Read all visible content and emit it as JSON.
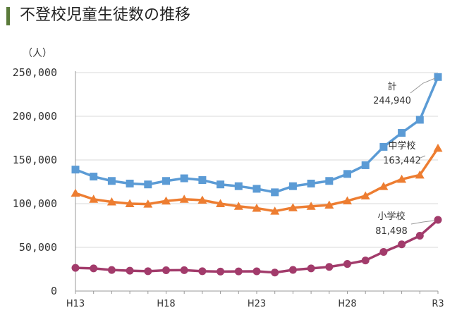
{
  "header": {
    "title": "不登校児童生徒数の推移",
    "accent_color": "#5a7a3a"
  },
  "chart_data": {
    "type": "line",
    "title": "不登校児童生徒数の推移",
    "ylabel": "（人）",
    "xlabel": "",
    "ylim": [
      0,
      250000
    ],
    "yticks": [
      0,
      50000,
      100000,
      150000,
      200000,
      250000
    ],
    "ytick_labels": [
      "0",
      "50,000",
      "100,000",
      "150,000",
      "200,000",
      "250,000"
    ],
    "x": [
      "H13",
      "H14",
      "H15",
      "H16",
      "H17",
      "H18",
      "H19",
      "H20",
      "H21",
      "H22",
      "H23",
      "H24",
      "H25",
      "H26",
      "H27",
      "H28",
      "H29",
      "H30",
      "R1",
      "R2",
      "R3"
    ],
    "xtick_labels": [
      "H13",
      "H18",
      "H23",
      "H28",
      "R3"
    ],
    "xtick_indices": [
      0,
      5,
      10,
      15,
      20
    ],
    "grid": "horizontal",
    "series": [
      {
        "name": "計",
        "color": "#5b9bd5",
        "marker": "square",
        "values": [
          139000,
          131000,
          126000,
          123000,
          122000,
          126000,
          129000,
          127000,
          122000,
          120000,
          117000,
          113000,
          120000,
          123000,
          126000,
          134000,
          144000,
          165000,
          181000,
          196000,
          244940
        ],
        "annotation": [
          "計",
          "244,940"
        ]
      },
      {
        "name": "中学校",
        "color": "#ed7d31",
        "marker": "triangle",
        "values": [
          112000,
          105000,
          102000,
          100000,
          99500,
          103000,
          105000,
          104000,
          100000,
          97000,
          94800,
          91400,
          95400,
          97000,
          98400,
          103200,
          108900,
          119700,
          127900,
          132800,
          163442
        ],
        "annotation": [
          "中学校",
          "163,442"
        ]
      },
      {
        "name": "小学校",
        "color": "#a23b6b",
        "marker": "circle",
        "values": [
          26500,
          25900,
          24100,
          23300,
          22700,
          23800,
          23900,
          22700,
          22300,
          22500,
          22600,
          21200,
          24200,
          25900,
          27600,
          31000,
          35000,
          44800,
          53400,
          63300,
          81498
        ],
        "annotation": [
          "小学校",
          "81,498"
        ]
      }
    ]
  }
}
